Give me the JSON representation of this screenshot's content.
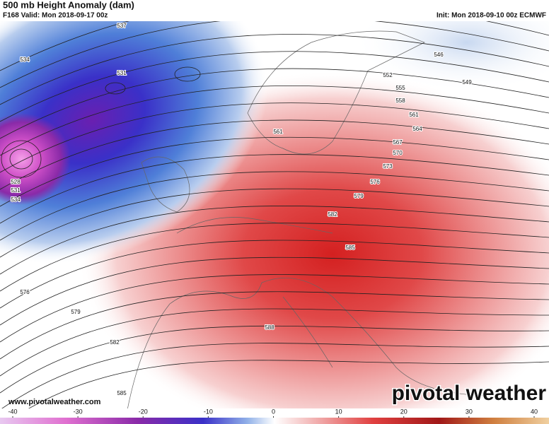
{
  "header": {
    "title": "500 mb Height Anomaly (dam)",
    "valid": "F168 Valid: Mon 2018-09-17 00z",
    "init": "Init: Mon 2018-09-10 00z ECMWF"
  },
  "contour_labels": [
    "537",
    "534",
    "531",
    "528",
    "531",
    "534",
    "546",
    "549",
    "552",
    "555",
    "558",
    "561",
    "564",
    "567",
    "570",
    "573",
    "576",
    "579",
    "582",
    "585",
    "588",
    "576",
    "579",
    "582",
    "585",
    "561"
  ],
  "footer": {
    "url": "www.pivotalweather.com",
    "logo": "pivotal weather"
  },
  "colorbar": {
    "ticks": [
      -40,
      -30,
      -20,
      -10,
      0,
      10,
      20,
      30,
      40
    ]
  }
}
